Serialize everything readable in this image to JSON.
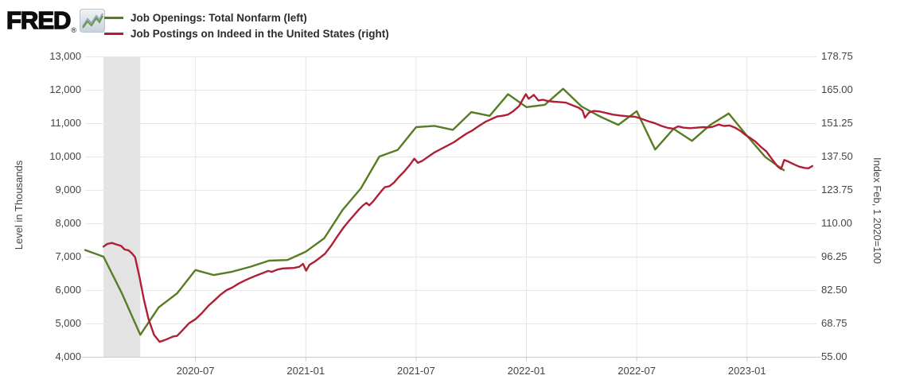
{
  "brand": {
    "logo_text": "FRED",
    "registered_mark": "®",
    "sparkline_icon": "line-chart-sparkline"
  },
  "legend": {
    "items": [
      {
        "label": "Job Openings: Total Nonfarm (left)",
        "color": "#567d23"
      },
      {
        "label": "Job Postings on Indeed in the United States (right)",
        "color": "#b01e36"
      }
    ]
  },
  "chart_data": {
    "type": "line",
    "background": "#ffffff",
    "gridline_color": "#e6e6e6",
    "axis_line_color": "#cccccc",
    "grid": true,
    "legend_position": "top-left",
    "recession_band": {
      "color": "#e3e3e3",
      "start": "2020-02",
      "end": "2020-04",
      "start_m": 1,
      "end_m": 3
    },
    "x_axis": {
      "unit": "month",
      "start": "2020-01",
      "end": "2023-04",
      "ticks": [
        {
          "label": "2020-07",
          "m": 6
        },
        {
          "label": "2021-01",
          "m": 12
        },
        {
          "label": "2021-07",
          "m": 18
        },
        {
          "label": "2022-01",
          "m": 24
        },
        {
          "label": "2022-07",
          "m": 30
        },
        {
          "label": "2023-01",
          "m": 36
        }
      ]
    },
    "left_axis": {
      "title": "Level in Thousands",
      "min": 4000,
      "max": 13000,
      "ticks": [
        {
          "label": "13,000",
          "value": 13000
        },
        {
          "label": "12,000",
          "value": 12000
        },
        {
          "label": "11,000",
          "value": 11000
        },
        {
          "label": "10,000",
          "value": 10000
        },
        {
          "label": "9,000",
          "value": 9000
        },
        {
          "label": "8,000",
          "value": 8000
        },
        {
          "label": "7,000",
          "value": 7000
        },
        {
          "label": "6,000",
          "value": 6000
        },
        {
          "label": "5,000",
          "value": 5000
        },
        {
          "label": "4,000",
          "value": 4000
        }
      ]
    },
    "right_axis": {
      "title": "Index Feb, 1 2020=100",
      "min": 55,
      "max": 178.75,
      "ticks": [
        {
          "label": "178.75",
          "value": 178.75
        },
        {
          "label": "165.00",
          "value": 165.0
        },
        {
          "label": "151.25",
          "value": 151.25
        },
        {
          "label": "137.50",
          "value": 137.5
        },
        {
          "label": "123.75",
          "value": 123.75
        },
        {
          "label": "110.00",
          "value": 110.0
        },
        {
          "label": "96.25",
          "value": 96.25
        },
        {
          "label": "82.50",
          "value": 82.5
        },
        {
          "label": "68.75",
          "value": 68.75
        },
        {
          "label": "55.00",
          "value": 55.0
        }
      ]
    },
    "series": [
      {
        "name": "Job Openings: Total Nonfarm",
        "axis": "left",
        "color": "#567d23",
        "frequency": "monthly",
        "start": "2020-01",
        "values": [
          7200,
          7000,
          5900,
          4660,
          5480,
          5900,
          6600,
          6450,
          6550,
          6700,
          6880,
          6900,
          7150,
          7550,
          8400,
          9050,
          10000,
          10200,
          10880,
          10920,
          10800,
          11330,
          11220,
          11870,
          11480,
          11550,
          12030,
          11500,
          11200,
          10950,
          11360,
          10210,
          10830,
          10470,
          10950,
          11290,
          10620,
          9980,
          9590
        ]
      },
      {
        "name": "Job Postings on Indeed in the United States",
        "axis": "right",
        "color": "#b01e36",
        "frequency": "daily",
        "points_format": "[months_since_2020_01, index_value]",
        "points": [
          [
            1.0,
            100.4
          ],
          [
            1.2,
            101.5
          ],
          [
            1.45,
            101.9
          ],
          [
            1.7,
            101.3
          ],
          [
            1.95,
            100.7
          ],
          [
            2.15,
            99.2
          ],
          [
            2.35,
            98.9
          ],
          [
            2.55,
            97.6
          ],
          [
            2.72,
            96.0
          ],
          [
            2.95,
            88.0
          ],
          [
            3.2,
            78.5
          ],
          [
            3.45,
            70.5
          ],
          [
            3.75,
            64.0
          ],
          [
            4.05,
            61.2
          ],
          [
            4.3,
            61.8
          ],
          [
            4.55,
            62.6
          ],
          [
            4.8,
            63.4
          ],
          [
            5.0,
            63.6
          ],
          [
            5.3,
            66.0
          ],
          [
            5.65,
            68.8
          ],
          [
            6.0,
            70.5
          ],
          [
            6.35,
            73.0
          ],
          [
            6.7,
            76.0
          ],
          [
            7.0,
            78.0
          ],
          [
            7.35,
            80.5
          ],
          [
            7.7,
            82.5
          ],
          [
            8.0,
            83.5
          ],
          [
            8.35,
            85.2
          ],
          [
            8.7,
            86.5
          ],
          [
            9.0,
            87.5
          ],
          [
            9.35,
            88.6
          ],
          [
            9.7,
            89.6
          ],
          [
            9.95,
            90.4
          ],
          [
            10.15,
            90.0
          ],
          [
            10.45,
            90.9
          ],
          [
            10.75,
            91.4
          ],
          [
            11.05,
            91.5
          ],
          [
            11.35,
            91.6
          ],
          [
            11.65,
            92.1
          ],
          [
            11.85,
            93.3
          ],
          [
            12.02,
            90.5
          ],
          [
            12.2,
            92.9
          ],
          [
            12.5,
            94.3
          ],
          [
            12.8,
            96.0
          ],
          [
            13.05,
            97.5
          ],
          [
            13.4,
            101.0
          ],
          [
            13.75,
            105.0
          ],
          [
            14.05,
            108.2
          ],
          [
            14.35,
            111.0
          ],
          [
            14.65,
            113.6
          ],
          [
            14.9,
            115.8
          ],
          [
            15.1,
            117.3
          ],
          [
            15.3,
            118.4
          ],
          [
            15.45,
            117.4
          ],
          [
            15.65,
            118.9
          ],
          [
            15.85,
            120.8
          ],
          [
            16.1,
            123.2
          ],
          [
            16.3,
            124.9
          ],
          [
            16.55,
            125.3
          ],
          [
            16.8,
            126.8
          ],
          [
            17.05,
            129.0
          ],
          [
            17.35,
            131.3
          ],
          [
            17.65,
            134.0
          ],
          [
            17.9,
            136.6
          ],
          [
            18.1,
            134.9
          ],
          [
            18.35,
            135.8
          ],
          [
            18.65,
            137.4
          ],
          [
            19.0,
            139.2
          ],
          [
            19.35,
            140.6
          ],
          [
            19.7,
            142.0
          ],
          [
            20.05,
            143.4
          ],
          [
            20.4,
            145.2
          ],
          [
            20.75,
            147.0
          ],
          [
            21.05,
            148.2
          ],
          [
            21.4,
            150.0
          ],
          [
            21.75,
            151.7
          ],
          [
            22.05,
            152.8
          ],
          [
            22.4,
            154.0
          ],
          [
            22.7,
            154.3
          ],
          [
            23.0,
            154.8
          ],
          [
            23.3,
            156.3
          ],
          [
            23.6,
            158.3
          ],
          [
            23.8,
            161.0
          ],
          [
            23.97,
            163.2
          ],
          [
            24.12,
            161.3
          ],
          [
            24.4,
            162.9
          ],
          [
            24.65,
            160.6
          ],
          [
            24.9,
            160.9
          ],
          [
            25.15,
            160.4
          ],
          [
            25.5,
            160.1
          ],
          [
            25.85,
            159.9
          ],
          [
            26.15,
            159.7
          ],
          [
            26.5,
            158.6
          ],
          [
            26.85,
            157.6
          ],
          [
            27.05,
            156.5
          ],
          [
            27.18,
            153.5
          ],
          [
            27.4,
            155.6
          ],
          [
            27.65,
            156.3
          ],
          [
            27.95,
            156.1
          ],
          [
            28.3,
            155.5
          ],
          [
            28.7,
            154.8
          ],
          [
            29.1,
            154.4
          ],
          [
            29.5,
            154.1
          ],
          [
            29.9,
            153.9
          ],
          [
            30.2,
            153.2
          ],
          [
            30.6,
            152.1
          ],
          [
            31.0,
            151.2
          ],
          [
            31.35,
            150.1
          ],
          [
            31.7,
            149.3
          ],
          [
            32.0,
            149.0
          ],
          [
            32.25,
            149.9
          ],
          [
            32.55,
            149.4
          ],
          [
            32.9,
            149.2
          ],
          [
            33.25,
            149.4
          ],
          [
            33.6,
            149.6
          ],
          [
            33.9,
            149.5
          ],
          [
            34.15,
            149.8
          ],
          [
            34.45,
            150.7
          ],
          [
            34.75,
            150.1
          ],
          [
            35.05,
            150.3
          ],
          [
            35.35,
            149.4
          ],
          [
            35.65,
            148.0
          ],
          [
            35.95,
            146.2
          ],
          [
            36.15,
            145.3
          ],
          [
            36.45,
            143.7
          ],
          [
            36.75,
            141.5
          ],
          [
            37.05,
            139.6
          ],
          [
            37.35,
            136.5
          ],
          [
            37.65,
            133.5
          ],
          [
            37.85,
            132.4
          ],
          [
            38.02,
            136.1
          ],
          [
            38.25,
            135.4
          ],
          [
            38.55,
            134.3
          ],
          [
            38.85,
            133.3
          ],
          [
            39.15,
            132.8
          ],
          [
            39.35,
            132.7
          ],
          [
            39.55,
            133.6
          ]
        ]
      }
    ]
  }
}
